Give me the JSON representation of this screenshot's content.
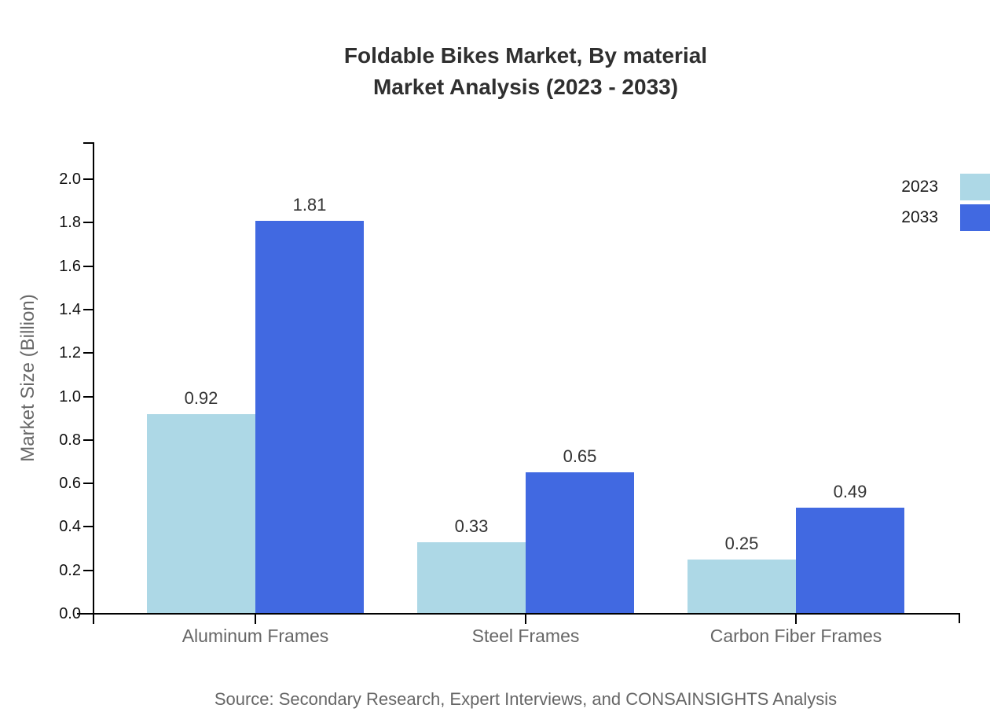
{
  "title": {
    "line1": "Foldable Bikes Market, By material",
    "line2": "Market Analysis (2023 - 2033)"
  },
  "source": "Source: Secondary Research, Expert Interviews, and CONSAINSIGHTS Analysis",
  "colors": {
    "series_2023": "#ADD8E6",
    "series_2033": "#4169E1",
    "axis": "#000000",
    "title_text": "#2f2f2f",
    "tick_label": "#111111",
    "value_label": "#333333",
    "category_label": "#666666",
    "muted_text": "#686868"
  },
  "chart_data": {
    "type": "bar",
    "title": "Foldable Bikes Market, By material Market Analysis (2023 - 2033)",
    "categories": [
      "Aluminum Frames",
      "Steel Frames",
      "Carbon Fiber Frames"
    ],
    "series": [
      {
        "name": "2023",
        "color": "#ADD8E6",
        "values": [
          0.92,
          0.33,
          0.25
        ]
      },
      {
        "name": "2033",
        "color": "#4169E1",
        "values": [
          1.81,
          0.65,
          0.49
        ]
      }
    ],
    "xlabel": "",
    "ylabel": "Market Size (Billion)",
    "ylim": [
      0,
      2.0
    ],
    "ytick_interval": 0.2,
    "ytick_labels": [
      "0.0",
      "0.2",
      "0.4",
      "0.6",
      "0.8",
      "1.0",
      "1.2",
      "1.4",
      "1.6",
      "1.8",
      "2.0"
    ],
    "grid": false,
    "legend_position": "upper-right",
    "bar_value_labels": [
      "0.92",
      "1.81",
      "0.33",
      "0.65",
      "0.25",
      "0.49"
    ]
  }
}
